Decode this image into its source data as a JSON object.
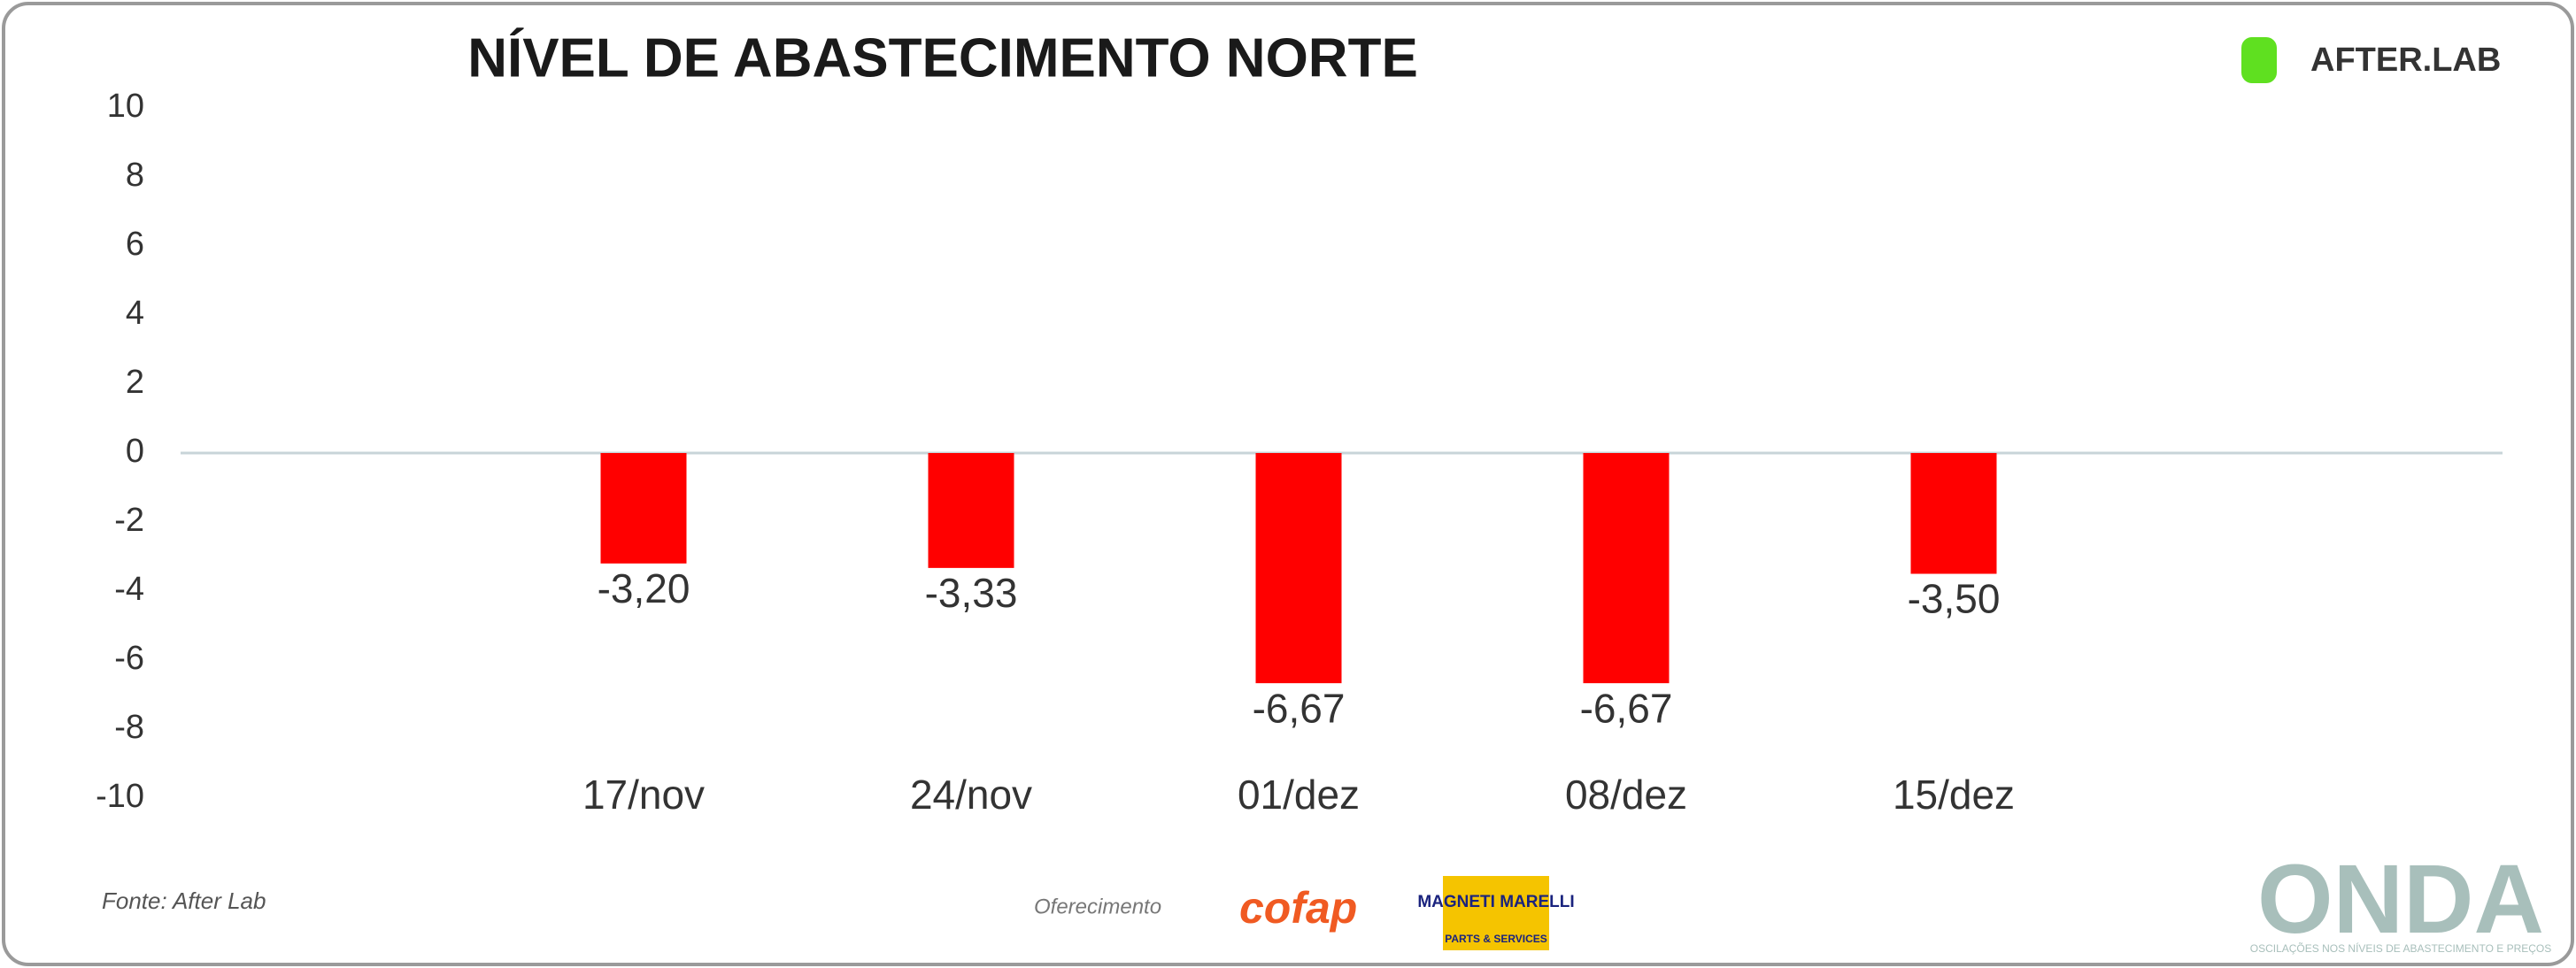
{
  "chart_data": {
    "type": "bar",
    "title": "NÍVEL DE ABASTECIMENTO NORTE",
    "categories": [
      "17/nov",
      "24/nov",
      "01/dez",
      "08/dez",
      "15/dez"
    ],
    "values": [
      -3.2,
      -3.33,
      -6.67,
      -6.67,
      -3.5
    ],
    "value_labels": [
      "-3,20",
      "-3,33",
      "-6,67",
      "-6,67",
      "-3,50"
    ],
    "color": "#ff0000",
    "ylim": [
      -10,
      10
    ],
    "yticks": [
      -10,
      -8,
      -6,
      -4,
      -2,
      0,
      2,
      4,
      6,
      8,
      10
    ],
    "grid": false,
    "logo": "AFTER.LAB",
    "source": "Fonte: After Lab",
    "sponsor_label": "Oferecimento",
    "sponsors": [
      "cofap",
      "MAGNETI MARELLI",
      "PARTS & SERVICES"
    ],
    "brand": "ONDA",
    "brand_tagline": "OSCILAÇÕES NOS NÍVEIS DE ABASTECIMENTO E PREÇOS"
  }
}
